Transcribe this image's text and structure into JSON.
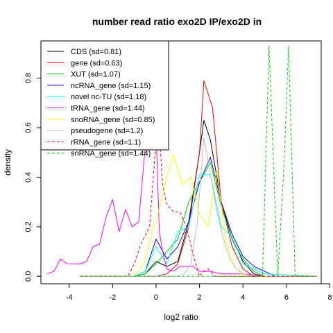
{
  "chart_data": {
    "type": "line",
    "title": "number read ratio exo2D IP/exo2D in",
    "xlabel": "log2 ratio",
    "ylabel": "density",
    "xlim": [
      -5.3,
      7.6
    ],
    "ylim": [
      -0.03,
      0.95
    ],
    "x_ticks": [
      -4,
      -2,
      0,
      2,
      4,
      6,
      8
    ],
    "x_tick_labels": [
      "-4",
      "-2",
      "0",
      "2",
      "4",
      "6",
      "8"
    ],
    "y_ticks": [
      0.0,
      0.2,
      0.4,
      0.6,
      0.8
    ],
    "y_tick_labels": [
      "0.0",
      "0.2",
      "0.4",
      "0.6",
      "0.8"
    ],
    "legend_position": "top-left",
    "series": [
      {
        "name": "CDS (sd=0.81)",
        "color": "#000000",
        "dash": "solid",
        "x": [
          -3.5,
          -1.0,
          -0.5,
          0.0,
          0.5,
          1.0,
          1.5,
          2.0,
          2.2,
          2.5,
          3.0,
          3.5,
          4.0,
          4.5,
          5.0,
          7.4
        ],
        "y": [
          0.0,
          0.0,
          0.01,
          0.06,
          0.04,
          0.06,
          0.22,
          0.5,
          0.63,
          0.55,
          0.3,
          0.15,
          0.06,
          0.01,
          0.0,
          0.0
        ]
      },
      {
        "name": "gene (sd=0.63)",
        "color": "#ff0000",
        "dash": "solid",
        "x": [
          -3.5,
          0.0,
          0.5,
          1.0,
          1.5,
          2.0,
          2.2,
          2.6,
          3.0,
          3.5,
          4.0,
          4.5,
          7.4
        ],
        "y": [
          0.0,
          0.0,
          0.01,
          0.05,
          0.2,
          0.5,
          0.79,
          0.68,
          0.3,
          0.12,
          0.03,
          0.0,
          0.0
        ]
      },
      {
        "name": "XUT (sd=1.07)",
        "color": "#00cc00",
        "dash": "solid",
        "x": [
          -3.5,
          -1.0,
          -0.5,
          0.0,
          0.5,
          1.0,
          1.5,
          2.0,
          2.5,
          3.0,
          3.5,
          4.0,
          4.5,
          5.0,
          7.4
        ],
        "y": [
          0.0,
          0.0,
          0.01,
          0.05,
          0.1,
          0.15,
          0.3,
          0.38,
          0.46,
          0.28,
          0.15,
          0.07,
          0.02,
          0.0,
          0.0
        ]
      },
      {
        "name": "ncRNA_gene (sd=1.15)",
        "color": "#0000ff",
        "dash": "solid",
        "x": [
          -3.5,
          -1.0,
          -0.5,
          0.0,
          0.5,
          1.0,
          1.5,
          2.0,
          2.5,
          3.0,
          3.5,
          4.0,
          4.5,
          5.5,
          7.4
        ],
        "y": [
          0.0,
          0.0,
          0.02,
          0.15,
          0.07,
          0.12,
          0.22,
          0.38,
          0.48,
          0.3,
          0.17,
          0.08,
          0.04,
          0.0,
          0.0
        ]
      },
      {
        "name": "novel nc-TU (sd=1.18)",
        "color": "#00ffff",
        "dash": "solid",
        "x": [
          -3.5,
          -1.0,
          -0.5,
          0.0,
          0.5,
          1.0,
          1.5,
          2.0,
          2.5,
          3.0,
          3.5,
          4.0,
          5.0,
          7.4
        ],
        "y": [
          0.0,
          0.0,
          0.02,
          0.12,
          0.05,
          0.18,
          0.2,
          0.41,
          0.41,
          0.2,
          0.16,
          0.05,
          0.01,
          0.0
        ]
      },
      {
        "name": "tRNA_gene (sd=1.44)",
        "color": "#ff00ff",
        "dash": "solid",
        "x": [
          -5.0,
          -4.7,
          -4.4,
          -4.1,
          -3.8,
          -3.5,
          -3.2,
          -2.9,
          -2.6,
          -2.3,
          -2.0,
          -1.7,
          -1.4,
          -1.1,
          -0.8,
          -0.5,
          -0.3,
          -0.15,
          0.0,
          0.15,
          0.3,
          0.5,
          0.8,
          1.1,
          1.4,
          1.7,
          2.0,
          2.5,
          3.0,
          4.0,
          5.0,
          7.4
        ],
        "y": [
          0.01,
          0.02,
          0.07,
          0.05,
          0.05,
          0.05,
          0.06,
          0.12,
          0.13,
          0.24,
          0.31,
          0.18,
          0.27,
          0.2,
          0.22,
          0.52,
          0.63,
          0.56,
          0.58,
          0.18,
          0.1,
          0.03,
          0.02,
          0.04,
          0.04,
          0.04,
          0.02,
          0.02,
          0.01,
          0.01,
          0.0,
          0.0
        ]
      },
      {
        "name": "snoRNA_gene (sd=0.85)",
        "color": "#ffff00",
        "dash": "solid",
        "x": [
          -3.5,
          -1.0,
          -0.5,
          -0.2,
          0.0,
          0.4,
          0.8,
          1.2,
          1.6,
          2.0,
          2.4,
          2.8,
          3.2,
          3.6,
          4.0,
          7.4
        ],
        "y": [
          0.0,
          0.0,
          0.06,
          0.18,
          0.22,
          0.37,
          0.49,
          0.37,
          0.4,
          0.25,
          0.2,
          0.43,
          0.14,
          0.04,
          0.0,
          0.0
        ]
      },
      {
        "name": "pseudogene (sd=1.2)",
        "color": "#bebebe",
        "dash": "solid",
        "x": [
          -3.5,
          0.0,
          0.5,
          1.0,
          1.3,
          1.6,
          1.9,
          2.2,
          2.5,
          2.8,
          3.1,
          3.4,
          3.7,
          4.0,
          4.5,
          7.4
        ],
        "y": [
          0.0,
          0.0,
          0.0,
          0.0,
          0.01,
          0.05,
          0.22,
          0.56,
          0.41,
          0.26,
          0.15,
          0.07,
          0.03,
          0.01,
          0.0,
          0.0
        ]
      },
      {
        "name": "rRNA_gene (sd=1.1)",
        "color": "#ff0000",
        "dash": "dashed",
        "x": [
          -3.5,
          -1.3,
          -1.0,
          -0.7,
          -0.3,
          0.0,
          0.15,
          0.3,
          0.5,
          0.8,
          1.1,
          1.4,
          1.7,
          2.0,
          2.2,
          2.4,
          2.7,
          3.0,
          3.5,
          4.0,
          7.4
        ],
        "y": [
          0.0,
          0.0,
          0.05,
          0.13,
          0.2,
          0.55,
          0.58,
          0.37,
          0.29,
          0.26,
          0.26,
          0.2,
          0.09,
          0.0,
          0.02,
          0.03,
          0.0,
          0.0,
          0.0,
          0.0,
          0.0
        ]
      },
      {
        "name": "snRNA_gene (sd=1.44)",
        "color": "#00cc00",
        "dash": "dashed",
        "x": [
          -3.5,
          0.0,
          0.4,
          1.0,
          1.5,
          2.0,
          2.5,
          3.0,
          4.0,
          4.6,
          4.9,
          5.2,
          5.6,
          5.9,
          6.1,
          6.4,
          6.7,
          7.4
        ],
        "y": [
          0.0,
          0.0,
          0.0,
          0.0,
          0.0,
          0.0,
          0.0,
          0.0,
          0.0,
          0.0,
          0.0,
          0.93,
          0.0,
          0.47,
          0.93,
          0.0,
          0.0,
          0.0
        ]
      }
    ]
  }
}
